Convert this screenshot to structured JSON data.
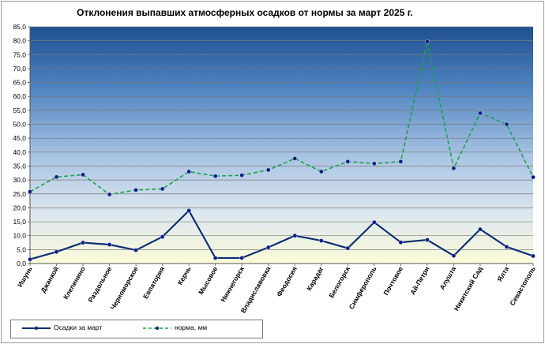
{
  "chart_data": {
    "type": "line",
    "title": "Отклонения выпавших атмосферных осадков от нормы за март 2025 г.",
    "categories": [
      "Ишунь",
      "Джанкой",
      "Клепинино",
      "Раздольное",
      "Черноморское",
      "Евпатория",
      "Керчь",
      "Мысовое",
      "Нижнегорск",
      "Владиславовка",
      "Феодосия",
      "Карадаг",
      "Белогорск",
      "Симферополь",
      "Почтовое",
      "Ай-Петри",
      "Алушта",
      "Никитский Сад",
      "Ялта",
      "Севастополь"
    ],
    "series": [
      {
        "name": "Осадки за март",
        "color": "#0d2f6e",
        "style": "solid",
        "values": [
          1.5,
          4.2,
          7.5,
          6.8,
          4.8,
          9.6,
          19.0,
          2.0,
          2.0,
          5.8,
          10.0,
          8.2,
          5.5,
          14.8,
          7.6,
          8.5,
          2.8,
          12.3,
          6.0,
          2.7
        ]
      },
      {
        "name": "норма, мм",
        "color": "#19a34b",
        "style": "dashed",
        "values": [
          25.8,
          31.1,
          31.9,
          24.8,
          26.4,
          26.8,
          33.0,
          31.4,
          31.7,
          33.6,
          37.7,
          33.0,
          36.6,
          35.9,
          36.6,
          79.7,
          34.2,
          54.0,
          50.0,
          31.0
        ]
      }
    ],
    "yticks": [
      "0,0",
      "5,0",
      "10,0",
      "15,0",
      "20,0",
      "25,0",
      "30,0",
      "35,0",
      "40,0",
      "45,0",
      "50,0",
      "55,0",
      "60,0",
      "65,0",
      "70,0",
      "75,0",
      "80,0",
      "85,0"
    ],
    "ylim": [
      0,
      85
    ],
    "grid": true,
    "legend": "bottom-left"
  }
}
